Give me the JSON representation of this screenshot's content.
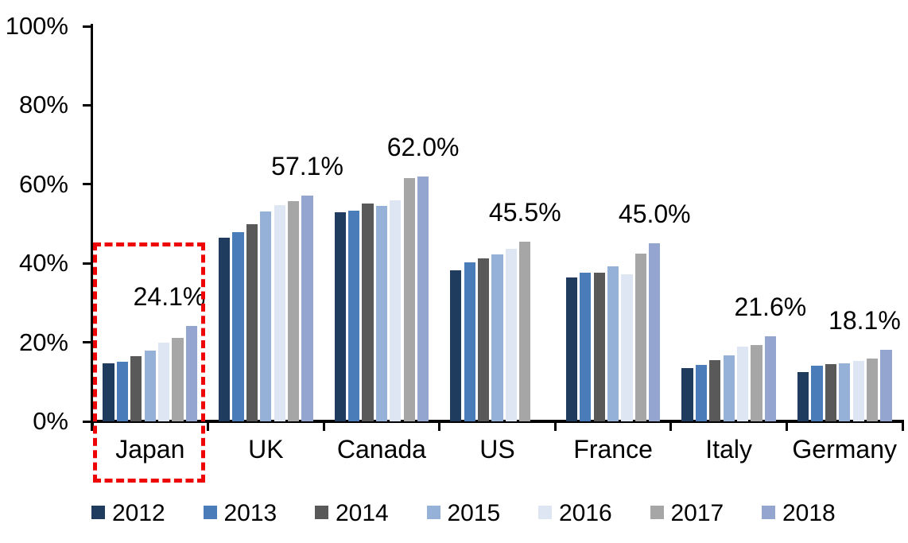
{
  "chart_data": {
    "type": "bar",
    "title": "",
    "xlabel": "",
    "ylabel": "",
    "ylim": [
      0,
      100
    ],
    "grid": false,
    "legend_position": "bottom",
    "background": "#ffffff",
    "axis_color": "#000000",
    "highlight_color": "#ee0404",
    "yticks": [
      {
        "label": "0%",
        "value": 0
      },
      {
        "label": "20%",
        "value": 20
      },
      {
        "label": "40%",
        "value": 40
      },
      {
        "label": "60%",
        "value": 60
      },
      {
        "label": "80%",
        "value": 80
      },
      {
        "label": "100%",
        "value": 100
      }
    ],
    "categories": [
      "Japan",
      "UK",
      "Canada",
      "US",
      "France",
      "Italy",
      "Germany"
    ],
    "series": [
      {
        "name": "2012",
        "color": "#1f3b5e",
        "values": [
          14.6,
          46.4,
          52.9,
          38.2,
          36.5,
          13.4,
          12.5
        ]
      },
      {
        "name": "2013",
        "color": "#4b7cba",
        "values": [
          15.0,
          47.8,
          53.3,
          40.2,
          37.7,
          14.2,
          14.0
        ]
      },
      {
        "name": "2014",
        "color": "#595959",
        "values": [
          16.5,
          49.9,
          55.1,
          41.2,
          37.6,
          15.4,
          14.4
        ]
      },
      {
        "name": "2015",
        "color": "#95b1d7",
        "values": [
          17.9,
          53.2,
          54.6,
          42.2,
          39.3,
          16.8,
          14.7
        ]
      },
      {
        "name": "2016",
        "color": "#dde6f2",
        "values": [
          19.9,
          54.8,
          55.9,
          43.6,
          37.3,
          19.0,
          15.3
        ]
      },
      {
        "name": "2017",
        "color": "#a6a6a6",
        "values": [
          21.1,
          55.8,
          61.5,
          45.5,
          42.4,
          19.3,
          15.8
        ]
      },
      {
        "name": "2018",
        "color": "#94a5d0",
        "values": [
          24.1,
          57.1,
          62.0,
          null,
          45.0,
          21.6,
          18.1
        ]
      }
    ],
    "annotations": [
      {
        "category": "Japan",
        "text": "24.1%"
      },
      {
        "category": "UK",
        "text": "57.1%"
      },
      {
        "category": "Canada",
        "text": "62.0%"
      },
      {
        "category": "US",
        "text": "45.5%"
      },
      {
        "category": "France",
        "text": "45.0%"
      },
      {
        "category": "Italy",
        "text": "21.6%"
      },
      {
        "category": "Germany",
        "text": "18.1%"
      }
    ],
    "highlight": {
      "category": "Japan",
      "style": "red-dashed-box"
    }
  }
}
